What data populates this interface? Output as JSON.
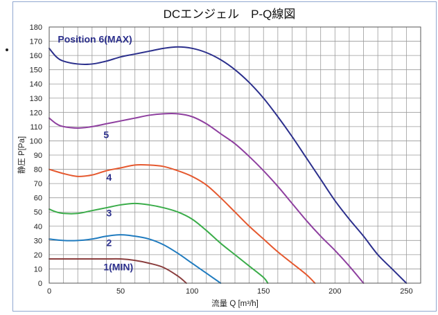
{
  "chart_data": {
    "type": "line",
    "title": "DCエンジェル　P-Q線図",
    "xlabel": "流量 Q [m³/h]",
    "ylabel": "静圧 P[Pa]",
    "xlim": [
      0,
      260
    ],
    "ylim": [
      0,
      180
    ],
    "x_ticks": [
      0,
      50,
      100,
      150,
      200,
      250
    ],
    "y_ticks": [
      0,
      10,
      20,
      30,
      40,
      50,
      60,
      70,
      80,
      90,
      100,
      110,
      120,
      130,
      140,
      150,
      160,
      170,
      180
    ],
    "grid": true,
    "legend": "inline labels",
    "series": [
      {
        "name": "Position 6(MAX)",
        "color": "#2b2f8c",
        "x": [
          0,
          5,
          10,
          20,
          30,
          40,
          50,
          60,
          70,
          80,
          90,
          100,
          110,
          120,
          130,
          140,
          150,
          160,
          170,
          180,
          190,
          200,
          210,
          220,
          230,
          240,
          250
        ],
        "y": [
          165,
          159,
          156,
          154,
          154,
          156,
          159,
          161,
          163,
          165,
          166,
          165,
          162,
          157,
          150,
          141,
          130,
          117,
          103,
          88,
          73,
          58,
          45,
          33,
          20,
          10,
          0
        ]
      },
      {
        "name": "5",
        "color": "#8e3f9f",
        "x": [
          0,
          5,
          10,
          20,
          30,
          40,
          50,
          60,
          70,
          80,
          90,
          100,
          110,
          120,
          130,
          140,
          150,
          160,
          170,
          180,
          190,
          200,
          210,
          220
        ],
        "y": [
          116,
          112,
          110,
          109,
          110,
          112,
          114,
          116,
          118,
          119,
          119,
          117,
          112,
          105,
          98,
          89,
          79,
          68,
          56,
          44,
          33,
          23,
          12,
          0
        ]
      },
      {
        "name": "4",
        "color": "#e5582e",
        "x": [
          0,
          10,
          20,
          30,
          40,
          50,
          60,
          70,
          80,
          90,
          100,
          110,
          120,
          130,
          140,
          150,
          160,
          170,
          180,
          186
        ],
        "y": [
          80,
          77,
          75,
          76,
          79,
          81,
          83,
          83,
          82,
          79,
          75,
          69,
          60,
          50,
          40,
          31,
          22,
          14,
          6,
          0
        ]
      },
      {
        "name": "3",
        "color": "#3aac49",
        "x": [
          0,
          5,
          10,
          20,
          30,
          40,
          50,
          60,
          70,
          80,
          90,
          100,
          110,
          120,
          130,
          140,
          150,
          153
        ],
        "y": [
          52,
          50,
          49,
          49,
          51,
          53,
          55,
          56,
          55,
          53,
          50,
          45,
          37,
          28,
          20,
          12,
          4,
          0
        ]
      },
      {
        "name": "2",
        "color": "#1f7bbf",
        "x": [
          0,
          10,
          20,
          30,
          40,
          50,
          60,
          70,
          80,
          90,
          100,
          110,
          120
        ],
        "y": [
          31,
          30,
          30,
          31,
          33,
          34,
          33,
          31,
          27,
          21,
          14,
          7,
          0
        ]
      },
      {
        "name": "1(MIN)",
        "color": "#8a3d3d",
        "x": [
          0,
          10,
          20,
          30,
          40,
          50,
          60,
          70,
          80,
          90,
          96
        ],
        "y": [
          17,
          17,
          17,
          17,
          17,
          17,
          16,
          14,
          11,
          5,
          0
        ]
      }
    ]
  }
}
